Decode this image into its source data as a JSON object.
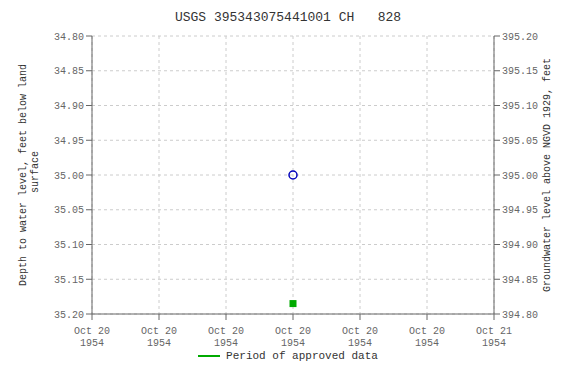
{
  "chart_data": {
    "type": "scatter",
    "title": "USGS 395343075441001 CH   828",
    "ylabel": "Depth to water level, feet below land\n surface",
    "y2label": "Groundwater level above NGVD 1929, feet",
    "categories": [
      "Oct 20\n1954",
      "Oct 20\n1954",
      "Oct 20\n1954",
      "Oct 20\n1954",
      "Oct 20\n1954",
      "Oct 20\n1954",
      "Oct 21\n1954"
    ],
    "series": [
      {
        "color": "#0000bb",
        "marker": "open_circle",
        "values": [
          null,
          null,
          null,
          35.0,
          null,
          null,
          null
        ]
      },
      {
        "name": "Period of approved data",
        "color": "#00aa00",
        "marker": "square",
        "values": [
          null,
          null,
          null,
          35.185,
          null,
          null,
          null
        ]
      }
    ],
    "ylim": [
      35.2,
      34.8
    ],
    "yticks": [
      {
        "value": 34.8,
        "label": "34.80"
      },
      {
        "value": 34.85,
        "label": "34.85"
      },
      {
        "value": 34.9,
        "label": "34.90"
      },
      {
        "value": 34.95,
        "label": "34.95"
      },
      {
        "value": 35.0,
        "label": "35.00"
      },
      {
        "value": 35.05,
        "label": "35.05"
      },
      {
        "value": 35.1,
        "label": "35.10"
      },
      {
        "value": 35.15,
        "label": "35.15"
      },
      {
        "value": 35.2,
        "label": "35.20"
      }
    ],
    "y2lim": [
      394.8,
      395.2
    ],
    "y2ticks": [
      {
        "value": 395.2,
        "label": "395.20"
      },
      {
        "value": 395.15,
        "label": "395.15"
      },
      {
        "value": 395.1,
        "label": "395.10"
      },
      {
        "value": 395.05,
        "label": "395.05"
      },
      {
        "value": 395.0,
        "label": "395.00"
      },
      {
        "value": 394.95,
        "label": "394.95"
      },
      {
        "value": 394.9,
        "label": "394.90"
      },
      {
        "value": 394.85,
        "label": "394.85"
      },
      {
        "value": 394.8,
        "label": "394.80"
      }
    ],
    "grid": true,
    "legend": "bottom"
  }
}
